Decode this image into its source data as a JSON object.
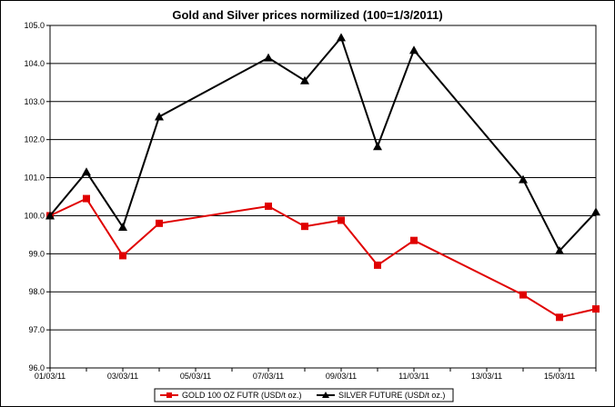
{
  "chart_data": {
    "type": "line",
    "title": "Gold and Silver prices normilized (100=1/3/2011)",
    "xlabel": "",
    "ylabel": "",
    "ylim": [
      96.0,
      105.0
    ],
    "xlim": [
      "2011-03-01",
      "2011-03-16"
    ],
    "y_ticks": [
      "96.0",
      "97.0",
      "98.0",
      "99.0",
      "100.0",
      "101.0",
      "102.0",
      "103.0",
      "104.0",
      "105.0"
    ],
    "x_ticks": [
      {
        "date": "2011-03-01",
        "label": "01/03/11"
      },
      {
        "date": "2011-03-03",
        "label": "03/03/11"
      },
      {
        "date": "2011-03-05",
        "label": "05/03/11"
      },
      {
        "date": "2011-03-07",
        "label": "07/03/11"
      },
      {
        "date": "2011-03-09",
        "label": "09/03/11"
      },
      {
        "date": "2011-03-11",
        "label": "11/03/11"
      },
      {
        "date": "2011-03-13",
        "label": "13/03/11"
      },
      {
        "date": "2011-03-15",
        "label": "15/03/11"
      }
    ],
    "grid": "horizontal",
    "legend_position": "bottom",
    "series": [
      {
        "name": "GOLD 100 OZ FUTR (USD/t oz.)",
        "color": "#e00000",
        "marker": "square",
        "points": [
          {
            "x": "2011-03-01",
            "y": 100.0
          },
          {
            "x": "2011-03-02",
            "y": 100.45
          },
          {
            "x": "2011-03-03",
            "y": 98.95
          },
          {
            "x": "2011-03-04",
            "y": 99.8
          },
          {
            "x": "2011-03-07",
            "y": 100.25
          },
          {
            "x": "2011-03-08",
            "y": 99.72
          },
          {
            "x": "2011-03-09",
            "y": 99.88
          },
          {
            "x": "2011-03-10",
            "y": 98.7
          },
          {
            "x": "2011-03-11",
            "y": 99.35
          },
          {
            "x": "2011-03-14",
            "y": 97.92
          },
          {
            "x": "2011-03-15",
            "y": 97.33
          },
          {
            "x": "2011-03-16",
            "y": 97.55
          }
        ]
      },
      {
        "name": "SILVER FUTURE (USD/t oz.)",
        "color": "#000000",
        "marker": "triangle",
        "points": [
          {
            "x": "2011-03-01",
            "y": 100.0
          },
          {
            "x": "2011-03-02",
            "y": 101.15
          },
          {
            "x": "2011-03-03",
            "y": 99.7
          },
          {
            "x": "2011-03-04",
            "y": 102.6
          },
          {
            "x": "2011-03-07",
            "y": 104.15
          },
          {
            "x": "2011-03-08",
            "y": 103.55
          },
          {
            "x": "2011-03-09",
            "y": 104.68
          },
          {
            "x": "2011-03-10",
            "y": 101.82
          },
          {
            "x": "2011-03-11",
            "y": 104.35
          },
          {
            "x": "2011-03-14",
            "y": 100.95
          },
          {
            "x": "2011-03-15",
            "y": 99.08
          },
          {
            "x": "2011-03-16",
            "y": 100.1
          }
        ]
      }
    ]
  }
}
